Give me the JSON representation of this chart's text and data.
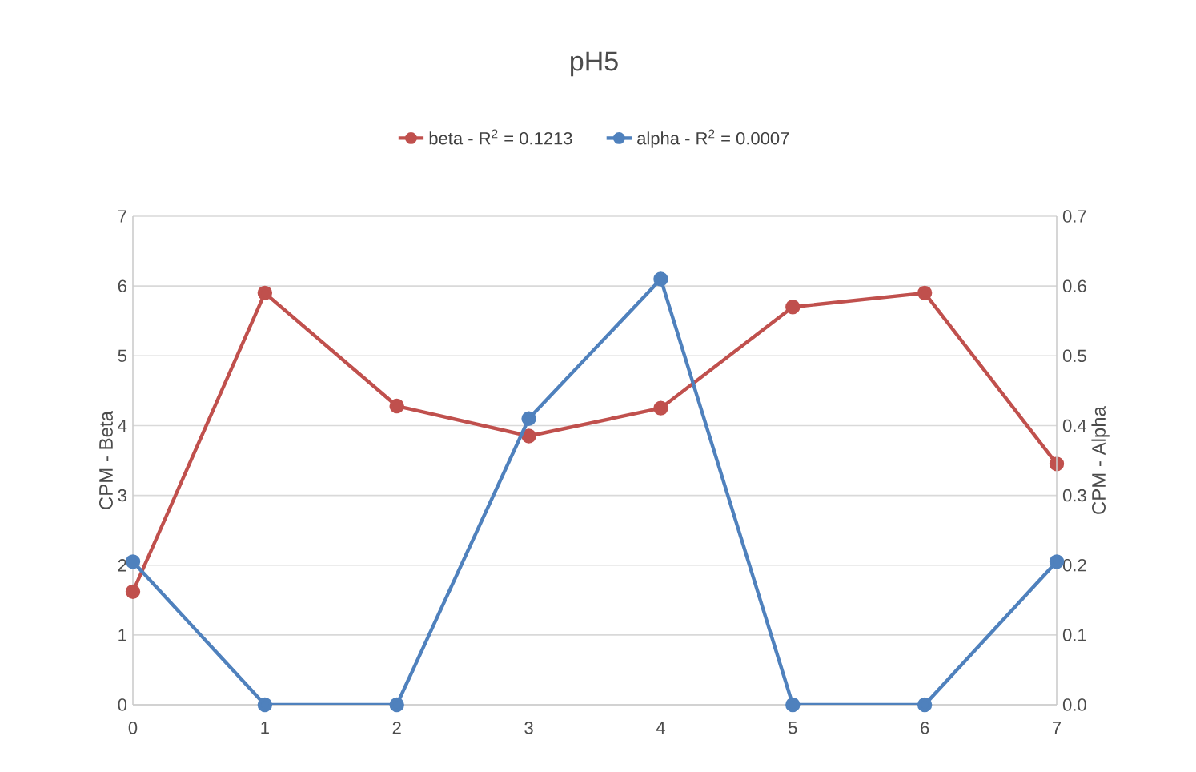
{
  "chart_data": {
    "type": "line",
    "title": "pH5",
    "ylabel": "CPM - Beta",
    "y2label": "CPM - Alpha",
    "x": [
      0,
      1,
      2,
      3,
      4,
      5,
      6,
      7
    ],
    "series": [
      {
        "name": "beta - R$^{2}$ = 0.1213",
        "color": "#c0504d",
        "values": [
          1.62,
          5.9,
          4.28,
          3.85,
          4.25,
          5.7,
          5.9,
          3.45
        ]
      },
      {
        "name": "alpha - R$^{2}$ = 0.0007",
        "color": "#4f81bd",
        "axis": "y2",
        "values": [
          0.205,
          0,
          0,
          0.41,
          0.61,
          0,
          0,
          0.205
        ]
      }
    ],
    "xlim": [
      0,
      7
    ],
    "xticks": [
      0,
      1,
      2,
      3,
      4,
      5,
      6,
      7
    ],
    "ylim": [
      0,
      7
    ],
    "yticks": [
      0,
      1,
      2,
      3,
      4,
      5,
      6,
      7
    ],
    "y2lim": [
      0,
      0.7
    ],
    "y2ticks": [
      {
        "value": 0,
        "label": "0.0"
      },
      0.1,
      0.2,
      0.3,
      0.4,
      0.5,
      0.6,
      0.7
    ],
    "grid": "y",
    "legend": "top",
    "marker": "circle",
    "line_style": "solid"
  }
}
